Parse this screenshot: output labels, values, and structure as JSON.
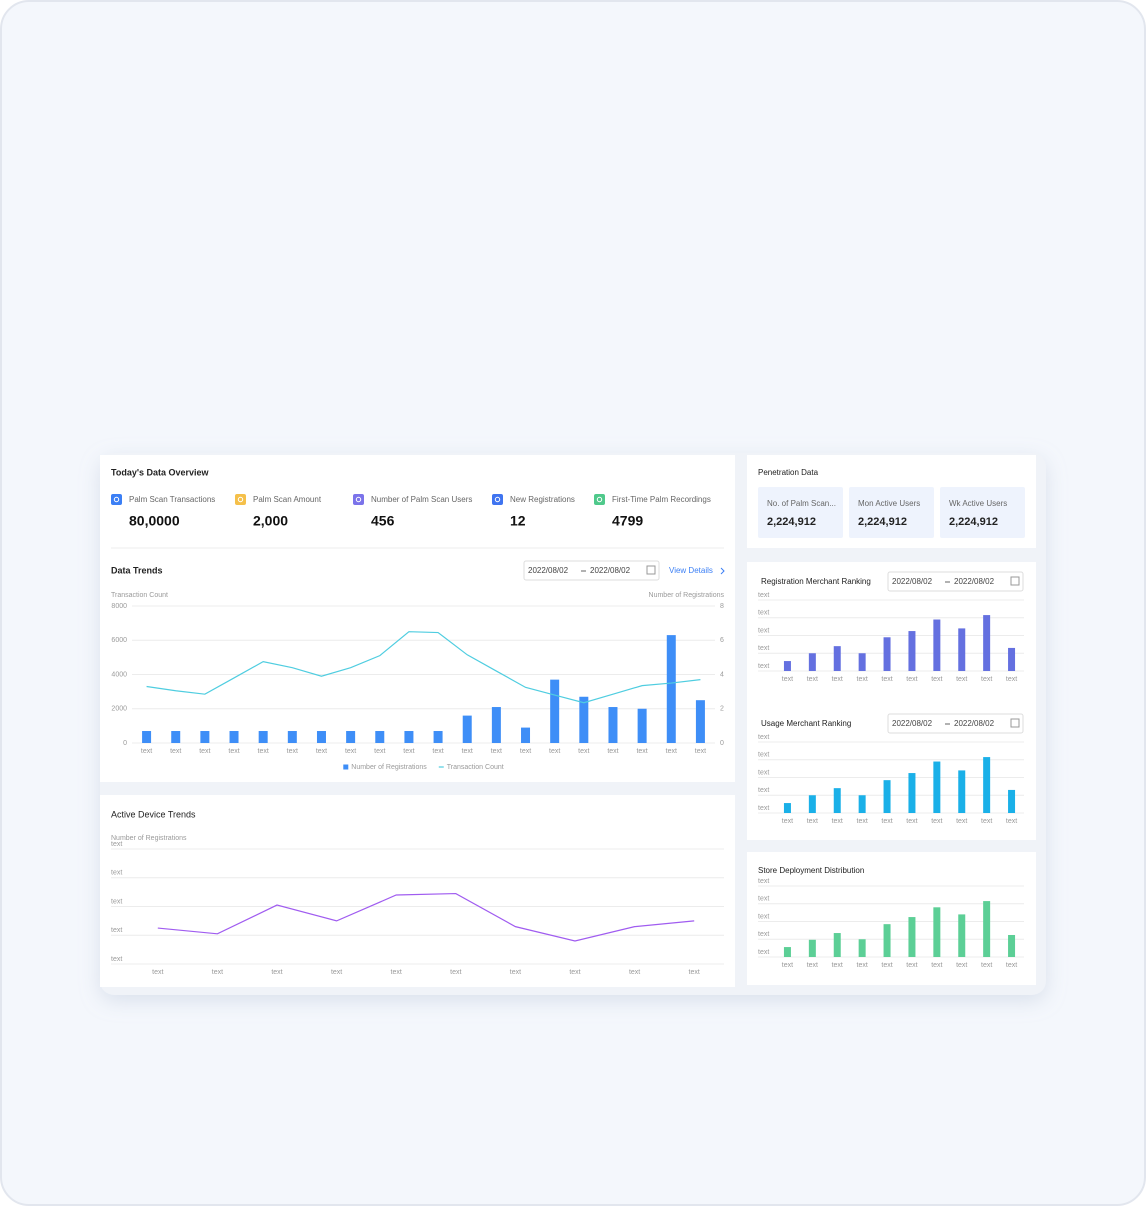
{
  "overview": {
    "title": "Today's Data Overview",
    "items": [
      {
        "label": "Palm Scan Transactions",
        "value": "80,0000",
        "color": "#3b7ff5"
      },
      {
        "label": "Palm Scan Amount",
        "value": "2,000",
        "color": "#f5c04a"
      },
      {
        "label": "Number of Palm Scan Users",
        "value": "456",
        "color": "#7b73ea"
      },
      {
        "label": "New Registrations",
        "value": "12",
        "color": "#3f74f0"
      },
      {
        "label": "First-Time Palm Recordings",
        "value": "4799",
        "color": "#4fc98b"
      }
    ]
  },
  "penetration": {
    "title": "Penetration Data",
    "items": [
      {
        "label": "No. of Palm Scan...",
        "value": "2,224,912"
      },
      {
        "label": "Mon Active Users",
        "value": "2,224,912"
      },
      {
        "label": "Wk Active Users",
        "value": "2,224,912"
      }
    ]
  },
  "chart_data": [
    {
      "type": "combo",
      "title": "Data Trends",
      "date_range": [
        "2022/08/02",
        "2022/08/02"
      ],
      "link": "View Details",
      "y_label": "Transaction Count",
      "y2_label": "Number of Registrations",
      "categories": [
        "text",
        "text",
        "text",
        "text",
        "text",
        "text",
        "text",
        "text",
        "text",
        "text",
        "text",
        "text",
        "text",
        "text",
        "text",
        "text",
        "text",
        "text",
        "text",
        "text"
      ],
      "ylim": [
        0,
        8000
      ],
      "yticks": [
        0,
        2000,
        4000,
        6000,
        8000
      ],
      "y2lim": [
        0,
        8
      ],
      "y2ticks": [
        0,
        2,
        4,
        6,
        8
      ],
      "grid": true,
      "legend": "bottom",
      "series": [
        {
          "name": "Number of Registrations",
          "type": "bar",
          "axis": "y2",
          "color": "#3e8ef7",
          "values": [
            0.7,
            0.7,
            0.7,
            0.7,
            0.7,
            0.7,
            0.7,
            0.7,
            0.7,
            0.7,
            0.7,
            1.6,
            2.1,
            0.9,
            3.7,
            2.7,
            2.1,
            2.0,
            6.3,
            2.5
          ]
        },
        {
          "name": "Transaction Count",
          "type": "line",
          "color": "#4fcde0",
          "values": [
            3300,
            3050,
            2850,
            3800,
            4750,
            4400,
            3900,
            4400,
            5100,
            6500,
            6450,
            5150,
            4200,
            3250,
            2800,
            2350,
            2850,
            3350,
            3500,
            3700
          ]
        }
      ]
    },
    {
      "type": "line",
      "title": "Active Device Trends",
      "y_label": "Number of Registrations",
      "categories": [
        "text",
        "text",
        "text",
        "text",
        "text",
        "text",
        "text",
        "text",
        "text",
        "text"
      ],
      "ylim": [
        0,
        4
      ],
      "yticks": [
        {
          "value": 0,
          "label": "text"
        },
        {
          "value": 1,
          "label": "text"
        },
        {
          "value": 2,
          "label": "text"
        },
        {
          "value": 3,
          "label": "text"
        },
        {
          "value": 4,
          "label": "text"
        }
      ],
      "grid": true,
      "color": "#a05cf0",
      "values": [
        1.25,
        1.05,
        2.05,
        1.5,
        2.4,
        2.45,
        1.3,
        0.8,
        1.3,
        1.5
      ]
    },
    {
      "type": "bar",
      "title": "Registration Merchant Ranking",
      "date_range": [
        "2022/08/02",
        "2022/08/02"
      ],
      "categories": [
        "text",
        "text",
        "text",
        "text",
        "text",
        "text",
        "text",
        "text",
        "text",
        "text"
      ],
      "ylim": [
        0,
        4
      ],
      "yticks": [
        {
          "value": 0,
          "label": "text"
        },
        {
          "value": 1,
          "label": "text"
        },
        {
          "value": 2,
          "label": "text"
        },
        {
          "value": 3,
          "label": "text"
        },
        {
          "value": 4,
          "label": "text"
        }
      ],
      "grid": true,
      "color": "#6470e0",
      "values": [
        0.56,
        1.0,
        1.4,
        1.0,
        1.9,
        2.25,
        2.9,
        2.4,
        3.15,
        1.3
      ]
    },
    {
      "type": "bar",
      "title": "Usage Merchant Ranking",
      "date_range": [
        "2022/08/02",
        "2022/08/02"
      ],
      "categories": [
        "text",
        "text",
        "text",
        "text",
        "text",
        "text",
        "text",
        "text",
        "text",
        "text"
      ],
      "ylim": [
        0,
        4
      ],
      "yticks": [
        {
          "value": 0,
          "label": "text"
        },
        {
          "value": 1,
          "label": "text"
        },
        {
          "value": 2,
          "label": "text"
        },
        {
          "value": 3,
          "label": "text"
        },
        {
          "value": 4,
          "label": "text"
        }
      ],
      "grid": true,
      "color": "#1ab0e8",
      "values": [
        0.56,
        1.0,
        1.4,
        1.0,
        1.85,
        2.25,
        2.9,
        2.4,
        3.15,
        1.3
      ]
    },
    {
      "type": "bar",
      "title": "Store Deployment Distribution",
      "categories": [
        "text",
        "text",
        "text",
        "text",
        "text",
        "text",
        "text",
        "text",
        "text",
        "text"
      ],
      "ylim": [
        0,
        4
      ],
      "yticks": [
        {
          "value": 0,
          "label": "text"
        },
        {
          "value": 1,
          "label": "text"
        },
        {
          "value": 2,
          "label": "text"
        },
        {
          "value": 3,
          "label": "text"
        },
        {
          "value": 4,
          "label": "text"
        }
      ],
      "grid": true,
      "color": "#5ccf96",
      "values": [
        0.56,
        0.97,
        1.35,
        1.0,
        1.85,
        2.25,
        2.8,
        2.4,
        3.15,
        1.24
      ]
    }
  ]
}
